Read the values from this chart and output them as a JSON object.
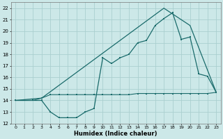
{
  "xlabel": "Humidex (Indice chaleur)",
  "bg_color": "#cce8e8",
  "grid_color": "#aacfcf",
  "line_color": "#1a6b6b",
  "xlim": [
    -0.5,
    23.5
  ],
  "ylim": [
    12,
    22.5
  ],
  "xticks": [
    0,
    1,
    2,
    3,
    4,
    5,
    6,
    7,
    8,
    9,
    10,
    11,
    12,
    13,
    14,
    15,
    16,
    17,
    18,
    19,
    20,
    21,
    22,
    23
  ],
  "yticks": [
    12,
    13,
    14,
    15,
    16,
    17,
    18,
    19,
    20,
    21,
    22
  ],
  "line1_x": [
    0,
    1,
    2,
    3,
    4,
    5,
    6,
    7,
    8,
    9,
    10,
    11,
    12,
    13,
    14,
    15,
    16,
    17,
    18,
    19,
    20,
    21,
    22,
    23
  ],
  "line1_y": [
    14.0,
    14.0,
    14.0,
    14.0,
    13.0,
    12.5,
    12.5,
    12.5,
    13.0,
    13.3,
    17.7,
    17.2,
    17.7,
    18.0,
    19.0,
    19.2,
    20.5,
    21.1,
    21.6,
    19.3,
    19.5,
    16.3,
    16.1,
    14.7
  ],
  "line2_x": [
    0,
    1,
    2,
    3,
    4,
    5,
    6,
    7,
    8,
    9,
    10,
    11,
    12,
    13,
    14,
    15,
    16,
    17,
    18,
    19,
    20,
    21,
    22,
    23
  ],
  "line2_y": [
    14.0,
    14.0,
    14.0,
    14.2,
    14.5,
    14.5,
    14.5,
    14.5,
    14.5,
    14.5,
    14.5,
    14.5,
    14.5,
    14.5,
    14.6,
    14.6,
    14.6,
    14.6,
    14.6,
    14.6,
    14.6,
    14.6,
    14.6,
    14.7
  ],
  "line3_x": [
    0,
    3,
    17,
    20,
    23
  ],
  "line3_y": [
    14.0,
    14.2,
    22.0,
    20.5,
    14.7
  ]
}
